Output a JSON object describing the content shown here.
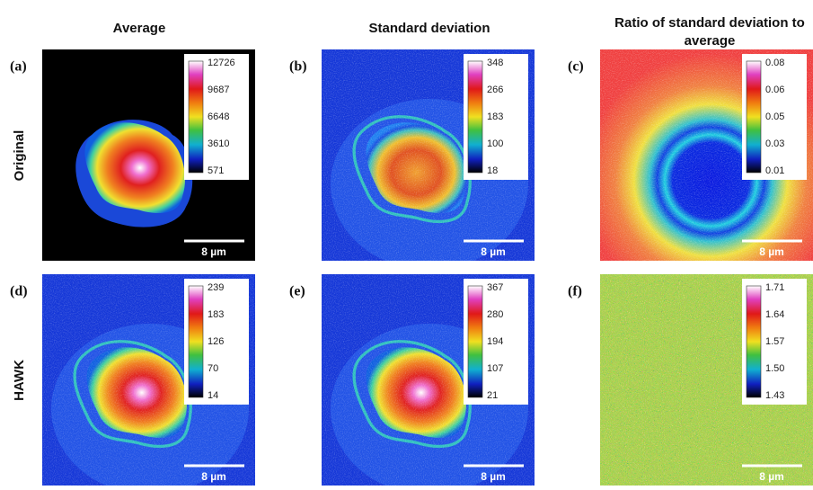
{
  "columns": [
    {
      "title": "Average"
    },
    {
      "title": "Standard deviation"
    },
    {
      "title": [
        "Ratio of standard deviation to",
        "average"
      ]
    }
  ],
  "rows": [
    {
      "label": "Original",
      "panels": [
        {
          "label": "(a)",
          "colorbar": [
            "12726",
            "9687",
            "6648",
            "3610",
            "571"
          ],
          "scale_bar": "8 µm"
        },
        {
          "label": "(b)",
          "colorbar": [
            "348",
            "266",
            "183",
            "100",
            "18"
          ],
          "scale_bar": "8 µm"
        },
        {
          "label": "(c)",
          "colorbar": [
            "0.08",
            "0.06",
            "0.05",
            "0.03",
            "0.01"
          ],
          "scale_bar": "8 µm"
        }
      ]
    },
    {
      "label": "HAWK",
      "panels": [
        {
          "label": "(d)",
          "colorbar": [
            "239",
            "183",
            "126",
            "70",
            "14"
          ],
          "scale_bar": "8 µm"
        },
        {
          "label": "(e)",
          "colorbar": [
            "367",
            "280",
            "194",
            "107",
            "21"
          ],
          "scale_bar": "8 µm"
        },
        {
          "label": "(f)",
          "colorbar": [
            "1.71",
            "1.64",
            "1.57",
            "1.50",
            "1.43"
          ],
          "scale_bar": "8 µm"
        }
      ]
    }
  ]
}
